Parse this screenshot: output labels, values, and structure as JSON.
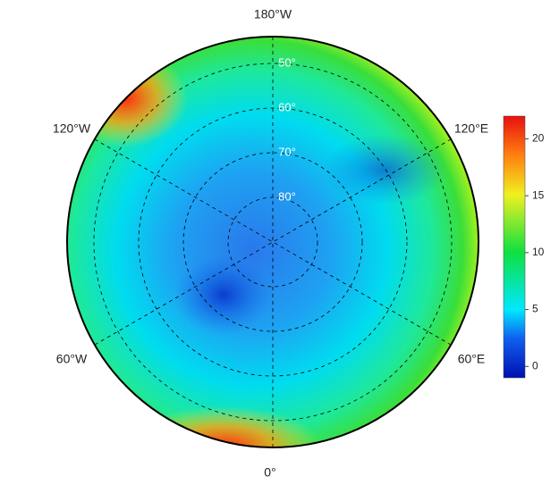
{
  "map": {
    "longitude_labels": [
      "180°W",
      "120°E",
      "60°E",
      "0°",
      "60°W",
      "120°W"
    ],
    "latitude_circles": [
      {
        "value": 50,
        "label": "50°"
      },
      {
        "value": 60,
        "label": "60°"
      },
      {
        "value": 70,
        "label": "70°"
      },
      {
        "value": 80,
        "label": "80°"
      }
    ]
  },
  "colorbar": {
    "range": [
      -1,
      22
    ],
    "ticks": [
      0,
      5,
      10,
      15,
      20
    ]
  }
}
